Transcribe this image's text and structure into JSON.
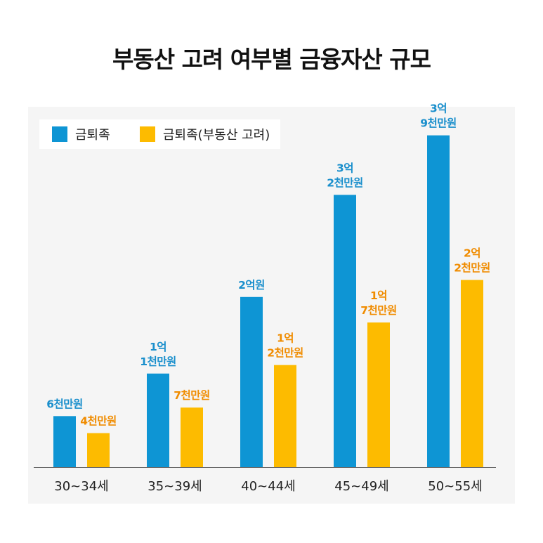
{
  "title": "부동산 고려 여부별 금융자산 규모",
  "colors": {
    "series1": "#0e95d4",
    "series2": "#fdbb00",
    "label1": "#1a8fcc",
    "label2": "#f08c00"
  },
  "chart_data": {
    "type": "bar",
    "title": "부동산 고려 여부별 금융자산 규모",
    "xlabel": "",
    "ylabel": "",
    "categories": [
      "30~34세",
      "35~39세",
      "40~44세",
      "45~49세",
      "50~55세"
    ],
    "ylim": [
      0,
      45000
    ],
    "grid": false,
    "legend": "top-left",
    "series": [
      {
        "name": "금퇴족",
        "values": [
          6000,
          11000,
          20000,
          32000,
          39000
        ],
        "labels": [
          [
            "6천만원"
          ],
          [
            "1억",
            "1천만원"
          ],
          [
            "2억원"
          ],
          [
            "3억",
            "2천만원"
          ],
          [
            "3억",
            "9천만원"
          ]
        ]
      },
      {
        "name": "금퇴족(부동산 고려)",
        "values": [
          4000,
          7000,
          12000,
          17000,
          22000
        ],
        "labels": [
          [
            "4천만원"
          ],
          [
            "7천만원"
          ],
          [
            "1억",
            "2천만원"
          ],
          [
            "1억",
            "7천만원"
          ],
          [
            "2억",
            "2천만원"
          ]
        ]
      }
    ]
  }
}
